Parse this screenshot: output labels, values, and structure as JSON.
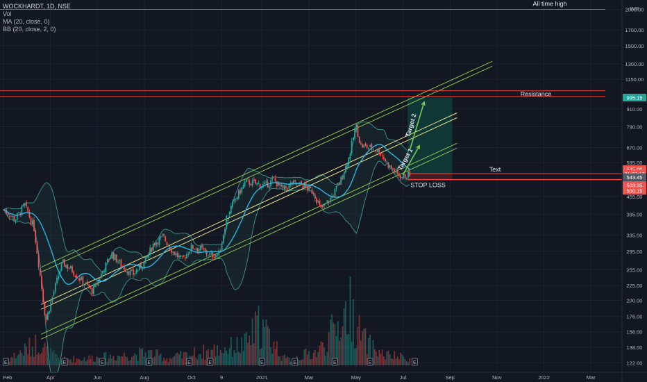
{
  "legend": {
    "symbol": "WOCKHARDT, 1D, NSE",
    "vol": "Vol",
    "ma": "MA (20, close, 0)",
    "bb": "BB (20, close, 2, 0)"
  },
  "colors": {
    "background": "#131722",
    "grid": "#1e2230",
    "up": "#26a69a",
    "down": "#ef5350",
    "ma": "#2fb4e0",
    "bb": "#3d8a84",
    "channel": "#8bc34a",
    "mid_channel": "#f0e68c",
    "level": "#ff3b3b",
    "target_zone": "#0f3d3a",
    "arrow": "#7cc65a"
  },
  "chart_data": {
    "type": "candlestick",
    "title": "WOCKHARDT, 1D, NSE",
    "y_scale": "log",
    "ylim": [
      112,
      2130
    ],
    "y_ticks": [
      {
        "v": 2000,
        "label": "2000.00"
      },
      {
        "v": 1700,
        "label": "1700.00"
      },
      {
        "v": 1500,
        "label": "1500.00"
      },
      {
        "v": 1300,
        "label": "1300.00"
      },
      {
        "v": 1150,
        "label": "1150.00"
      },
      {
        "v": 910,
        "label": "910.00"
      },
      {
        "v": 790,
        "label": "790.00"
      },
      {
        "v": 670,
        "label": "670.00"
      },
      {
        "v": 595,
        "label": "595.00"
      },
      {
        "v": 455,
        "label": "455.00"
      },
      {
        "v": 395,
        "label": "395.00"
      },
      {
        "v": 335,
        "label": "335.00"
      },
      {
        "v": 295,
        "label": "295.00"
      },
      {
        "v": 255,
        "label": "255.00"
      },
      {
        "v": 225,
        "label": "225.00"
      },
      {
        "v": 200,
        "label": "200.00"
      },
      {
        "v": 176,
        "label": "176.00"
      },
      {
        "v": 156,
        "label": "156.00"
      },
      {
        "v": 138,
        "label": "138.00"
      },
      {
        "v": 122,
        "label": "122.00"
      }
    ],
    "currency": "INR",
    "x_ticks": [
      {
        "label": "Feb",
        "m": 0
      },
      {
        "label": "Apr",
        "m": 2
      },
      {
        "label": "Jun",
        "m": 4
      },
      {
        "label": "Aug",
        "m": 6
      },
      {
        "label": "Oct",
        "m": 8
      },
      {
        "label": "9",
        "m": 9.28
      },
      {
        "label": "2021",
        "m": 11
      },
      {
        "label": "Mar",
        "m": 13
      },
      {
        "label": "May",
        "m": 15
      },
      {
        "label": "Jul",
        "m": 17
      },
      {
        "label": "Sep",
        "m": 19
      },
      {
        "label": "Nov",
        "m": 21
      },
      {
        "label": "2022",
        "m": 23
      },
      {
        "label": "Mar",
        "m": 25
      }
    ],
    "last_month_of_data": 17.3,
    "price_path": [
      [
        0,
        410
      ],
      [
        0.5,
        380
      ],
      [
        0.9,
        425
      ],
      [
        1.3,
        355
      ],
      [
        1.6,
        230
      ],
      [
        1.8,
        170
      ],
      [
        2.0,
        195
      ],
      [
        2.5,
        270
      ],
      [
        2.9,
        255
      ],
      [
        3.3,
        235
      ],
      [
        3.8,
        215
      ],
      [
        4.2,
        250
      ],
      [
        4.6,
        290
      ],
      [
        5.0,
        265
      ],
      [
        5.5,
        245
      ],
      [
        6.0,
        270
      ],
      [
        6.4,
        315
      ],
      [
        6.8,
        330
      ],
      [
        7.2,
        295
      ],
      [
        7.6,
        275
      ],
      [
        8.0,
        305
      ],
      [
        8.4,
        300
      ],
      [
        8.8,
        285
      ],
      [
        9.2,
        290
      ],
      [
        9.5,
        390
      ],
      [
        9.9,
        450
      ],
      [
        10.3,
        510
      ],
      [
        10.7,
        505
      ],
      [
        11.1,
        495
      ],
      [
        11.5,
        520
      ],
      [
        11.9,
        480
      ],
      [
        12.3,
        505
      ],
      [
        12.8,
        495
      ],
      [
        13.2,
        470
      ],
      [
        13.5,
        410
      ],
      [
        13.9,
        445
      ],
      [
        14.3,
        505
      ],
      [
        14.7,
        620
      ],
      [
        15.0,
        800
      ],
      [
        15.2,
        680
      ],
      [
        15.6,
        670
      ],
      [
        16.0,
        650
      ],
      [
        16.4,
        580
      ],
      [
        16.8,
        540
      ],
      [
        17.0,
        530
      ],
      [
        17.3,
        545
      ]
    ],
    "volume_path": [
      [
        0,
        0.05
      ],
      [
        1.6,
        0.35
      ],
      [
        1.8,
        0.22
      ],
      [
        2.4,
        0.08
      ],
      [
        4.3,
        0.12
      ],
      [
        6.2,
        0.18
      ],
      [
        7.0,
        0.1
      ],
      [
        9.5,
        0.25
      ],
      [
        10.3,
        0.3
      ],
      [
        10.9,
        0.6
      ],
      [
        12.0,
        0.08
      ],
      [
        13.4,
        0.2
      ],
      [
        14.8,
        0.85
      ],
      [
        15.0,
        0.55
      ],
      [
        15.5,
        0.3
      ],
      [
        16.2,
        0.15
      ],
      [
        17.3,
        0.1
      ]
    ],
    "channels": [
      {
        "name": "upper",
        "p1": [
          1.6,
          255
        ],
        "p2": [
          20.8,
          1300
        ]
      },
      {
        "name": "middle",
        "p1": [
          1.6,
          190
        ],
        "p2": [
          19.3,
          865
        ]
      },
      {
        "name": "lower",
        "p1": [
          1.6,
          150
        ],
        "p2": [
          19.3,
          680
        ]
      }
    ],
    "levels": [
      {
        "name": "all_time_high",
        "value": 2000,
        "label": "All time high"
      },
      {
        "name": "resistance_top",
        "value": 1050,
        "label": "Resistance"
      },
      {
        "name": "resistance_bottom",
        "value": 1005,
        "label": ""
      },
      {
        "name": "entry",
        "value": 545,
        "label": "Text"
      },
      {
        "name": "stop_loss",
        "value": 520,
        "label": "STOP LOSS"
      }
    ],
    "targets": [
      {
        "label": "Target 1",
        "from": [
          17.0,
          540
        ],
        "to": [
          17.7,
          680
        ]
      },
      {
        "label": "Target 2",
        "from": [
          17.3,
          660
        ],
        "to": [
          17.9,
          960
        ]
      }
    ],
    "target_zone": {
      "x0": 17.2,
      "x1": 19.1,
      "y0": 545,
      "y1": 995
    },
    "stop_zone": {
      "x0": 17.2,
      "x1": 19.1,
      "y0": 520,
      "y1": 545
    },
    "price_labels": [
      {
        "value": 995.15,
        "label": "995.15",
        "color": "#26a69a"
      },
      {
        "value": 565.0,
        "label": "545.00",
        "color": "#ef5350"
      },
      {
        "value": 545.0,
        "label": "01:37:17",
        "color": "#ef5350"
      },
      {
        "value": 530.0,
        "label": "543.45",
        "color": "#555a66"
      },
      {
        "value": 498.0,
        "label": "503.35",
        "color": "#ef5350"
      },
      {
        "value": 476.0,
        "label": "500.15",
        "color": "#ef5350"
      }
    ],
    "earnings_marks": [
      0.1,
      2.6,
      4.2,
      6.2,
      7.9,
      8.8,
      11.0,
      12.4,
      14.1,
      15.6,
      17.5
    ]
  }
}
